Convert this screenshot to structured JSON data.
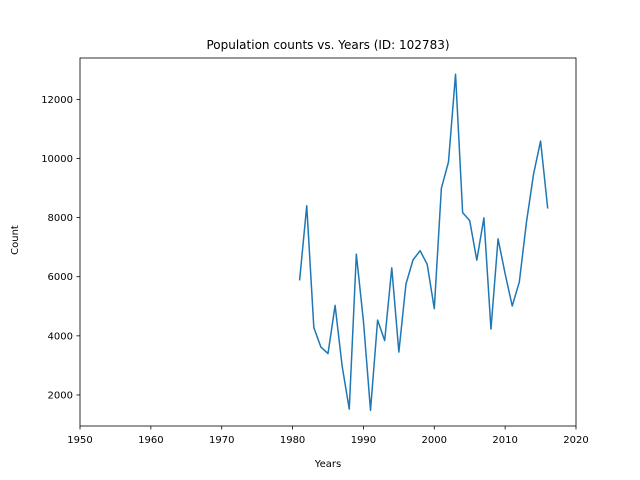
{
  "chart_data": {
    "type": "line",
    "title": "Population counts vs. Years (ID: 102783)",
    "xlabel": "Years",
    "ylabel": "Count",
    "xlim": [
      1950,
      2020
    ],
    "ylim": [
      950,
      13400
    ],
    "xticks": [
      1950,
      1960,
      1970,
      1980,
      1990,
      2000,
      2010,
      2020
    ],
    "yticks": [
      2000,
      4000,
      6000,
      8000,
      10000,
      12000
    ],
    "grid": false,
    "series": [
      {
        "color": "#1f77b4",
        "x": [
          1981,
          1982,
          1983,
          1984,
          1985,
          1986,
          1987,
          1988,
          1989,
          1990,
          1991,
          1992,
          1993,
          1994,
          1995,
          1996,
          1997,
          1998,
          1999,
          2000,
          2001,
          2002,
          2003,
          2004,
          2005,
          2006,
          2007,
          2008,
          2009,
          2010,
          2011,
          2012,
          2013,
          2014,
          2015,
          2016
        ],
        "y": [
          5900,
          8400,
          4280,
          3620,
          3400,
          5030,
          2970,
          1520,
          6760,
          4500,
          1480,
          4530,
          3840,
          6300,
          3450,
          5750,
          6570,
          6880,
          6420,
          4920,
          8990,
          9880,
          12850,
          8170,
          7900,
          6560,
          7990,
          4230,
          7280,
          6100,
          5010,
          5820,
          7830,
          9460,
          10590,
          8330
        ]
      }
    ]
  }
}
